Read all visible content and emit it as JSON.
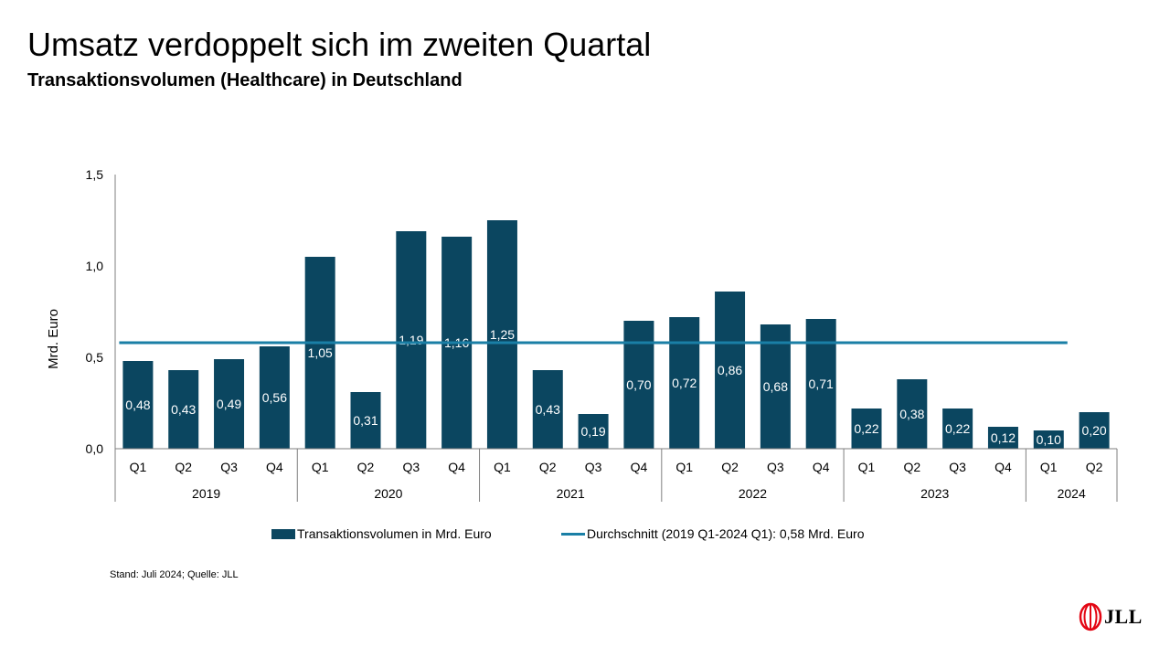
{
  "title": "Umsatz verdoppelt sich im zweiten Quartal",
  "subtitle": "Transaktionsvolumen (Healthcare) in Deutschland",
  "footnote": "Stand: Juli 2024; Quelle: JLL",
  "logo_text": "JLL",
  "colors": {
    "bar": "#0b4660",
    "average_line": "#1a7fa6",
    "bar_label": "#ffffff"
  },
  "legend": {
    "bar_label": "Transaktionsvolumen in Mrd. Euro",
    "line_label": "Durchschnitt (2019 Q1-2024 Q1): 0,58 Mrd. Euro"
  },
  "chart_data": {
    "type": "bar",
    "ylabel": "Mrd. Euro",
    "ylim": [
      0,
      1.5
    ],
    "yticks": [
      "0,0",
      "0,5",
      "1,0",
      "1,5"
    ],
    "categories": [
      "Q1",
      "Q2",
      "Q3",
      "Q4",
      "Q1",
      "Q2",
      "Q3",
      "Q4",
      "Q1",
      "Q2",
      "Q3",
      "Q4",
      "Q1",
      "Q2",
      "Q3",
      "Q4",
      "Q1",
      "Q2",
      "Q3",
      "Q4",
      "Q1",
      "Q2"
    ],
    "years": [
      {
        "label": "2019",
        "count": 4
      },
      {
        "label": "2020",
        "count": 4
      },
      {
        "label": "2021",
        "count": 4
      },
      {
        "label": "2022",
        "count": 4
      },
      {
        "label": "2023",
        "count": 4
      },
      {
        "label": "2024",
        "count": 2
      }
    ],
    "series": [
      {
        "name": "Transaktionsvolumen in Mrd. Euro",
        "values": [
          0.48,
          0.43,
          0.49,
          0.56,
          1.05,
          0.31,
          1.19,
          1.16,
          1.25,
          0.43,
          0.19,
          0.7,
          0.72,
          0.86,
          0.68,
          0.71,
          0.22,
          0.38,
          0.22,
          0.12,
          0.1,
          0.2
        ],
        "labels": [
          "0,48",
          "0,43",
          "0,49",
          "0,56",
          "1,05",
          "0,31",
          "1,19",
          "1,16",
          "1,25",
          "0,43",
          "0,19",
          "0,70",
          "0,72",
          "0,86",
          "0,68",
          "0,71",
          "0,22",
          "0,38",
          "0,22",
          "0,12",
          "0,10",
          "0,20"
        ]
      },
      {
        "name": "Durchschnitt (2019 Q1-2024 Q1): 0,58 Mrd. Euro",
        "value": 0.58
      }
    ],
    "legend_position": "bottom",
    "grid": false
  }
}
